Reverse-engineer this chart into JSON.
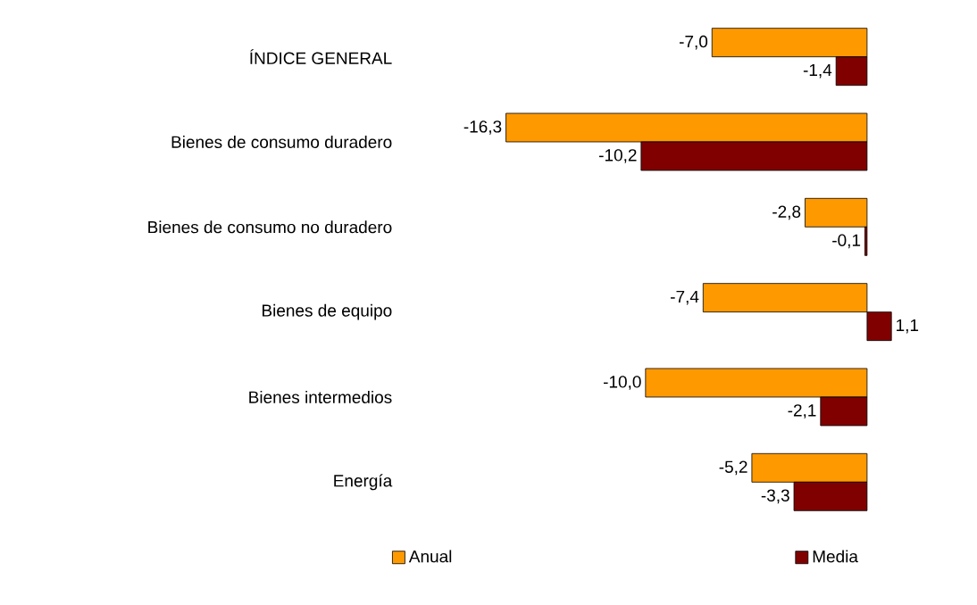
{
  "chart_data": {
    "type": "bar",
    "orientation": "horizontal",
    "categories": [
      "ÍNDICE GENERAL",
      "Bienes de consumo duradero",
      "Bienes de consumo no duradero",
      "Bienes de equipo",
      "Bienes intermedios",
      "Energía"
    ],
    "series": [
      {
        "name": "Anual",
        "color": "#ff9900",
        "values": [
          -7.0,
          -16.3,
          -2.8,
          -7.4,
          -10.0,
          -5.2
        ],
        "value_labels": [
          "-7,0",
          "-16,3",
          "-2,8",
          "-7,4",
          "-10,0",
          "-5,2"
        ]
      },
      {
        "name": "Media",
        "color": "#800000",
        "values": [
          -1.4,
          -10.2,
          -0.1,
          1.1,
          -2.1,
          -3.3
        ],
        "value_labels": [
          "-1,4",
          "-10,2",
          "-0,1",
          "1,1",
          "-2,1",
          "-3,3"
        ]
      }
    ],
    "legend": "bottom"
  }
}
